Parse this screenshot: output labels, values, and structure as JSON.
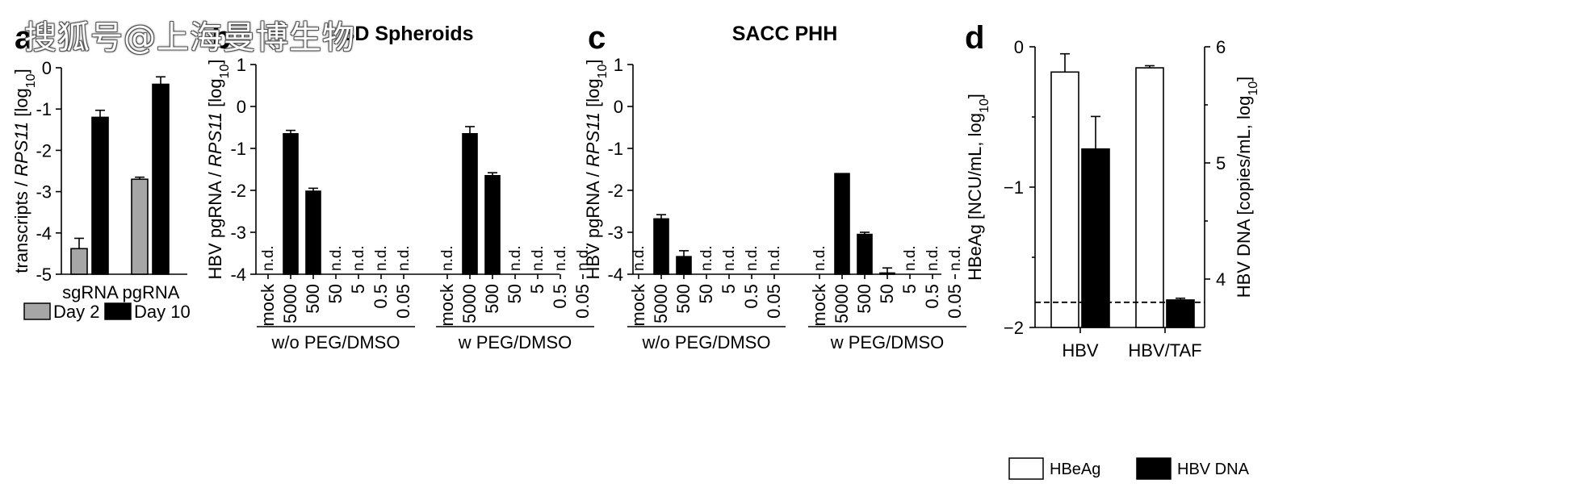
{
  "watermark": "搜狐号@上海曼博生物",
  "colors": {
    "day2": "#a6a6a6",
    "day10": "#000000",
    "black": "#000000",
    "white": "#ffffff"
  },
  "chart_data": [
    {
      "panel": "a",
      "type": "bar",
      "title": "",
      "ylabel": "transcripts / RPS11 [log10]",
      "ylim": [
        -5,
        0
      ],
      "yticks": [
        "0",
        "-1",
        "-2",
        "-3",
        "-4",
        "-5"
      ],
      "categories": [
        "sgRNA",
        "pgRNA"
      ],
      "series": [
        {
          "name": "Day 2",
          "values": [
            -4.38,
            -2.7
          ],
          "errors": [
            0.25,
            0.05
          ]
        },
        {
          "name": "Day 10",
          "values": [
            -1.2,
            -0.4
          ],
          "errors": [
            0.17,
            0.18
          ]
        }
      ],
      "legend": [
        "Day 2",
        "Day 10"
      ]
    },
    {
      "panel": "b",
      "type": "bar",
      "title": "3D Spheroids",
      "ylabel": "HBV pgRNA / RPS11 [log10]",
      "ylim": [
        -4,
        1
      ],
      "yticks": [
        "1",
        "0",
        "-1",
        "-2",
        "-3",
        "-4"
      ],
      "categories": [
        "mock",
        "5000",
        "500",
        "50",
        "5",
        "0.5",
        "0.05",
        "mock",
        "5000",
        "500",
        "50",
        "5",
        "0.5",
        "0.05"
      ],
      "values": [
        null,
        -0.65,
        -2.02,
        null,
        null,
        null,
        null,
        null,
        -0.65,
        -1.65,
        null,
        null,
        null,
        null
      ],
      "errors": [
        null,
        0.08,
        0.07,
        null,
        null,
        null,
        null,
        null,
        0.17,
        0.07,
        null,
        null,
        null,
        null
      ],
      "nd_label": "n.d.",
      "groups": [
        "w/o PEG/DMSO",
        "w PEG/DMSO"
      ]
    },
    {
      "panel": "c",
      "type": "bar",
      "title": "SACC PHH",
      "ylabel": "HBV pgRNA / RPS11 [log10]",
      "ylim": [
        -4,
        1
      ],
      "yticks": [
        "1",
        "0",
        "-1",
        "-2",
        "-3",
        "-4"
      ],
      "categories": [
        "mock",
        "5000",
        "500",
        "50",
        "5",
        "0.5",
        "0.05",
        "mock",
        "5000",
        "500",
        "50",
        "5",
        "0.5",
        "0.05"
      ],
      "values": [
        null,
        -2.68,
        -3.58,
        null,
        null,
        null,
        null,
        null,
        -1.6,
        -3.05,
        -3.97,
        null,
        null,
        null
      ],
      "errors": [
        null,
        0.1,
        0.14,
        null,
        null,
        null,
        null,
        null,
        0.0,
        0.05,
        0.12,
        null,
        null,
        null
      ],
      "nd_label": "n.d.",
      "groups": [
        "w/o PEG/DMSO",
        "w PEG/DMSO"
      ]
    },
    {
      "panel": "d",
      "type": "bar",
      "title": "",
      "ylabel": "HBeAg [NCU/mL, log10]",
      "ylabel_right": "HBV DNA [copies/mL, log10]",
      "ylim": [
        -2,
        0
      ],
      "yticks": [
        "0",
        "−1",
        "−2"
      ],
      "ylim_right": [
        3.65,
        6
      ],
      "yticks_right": [
        "6",
        "5",
        "4"
      ],
      "categories": [
        "HBV",
        "HBV/TAF"
      ],
      "series": [
        {
          "name": "HBeAg",
          "axis": "left",
          "values": [
            -0.18,
            -0.15
          ],
          "errors": [
            0.13,
            0.015
          ]
        },
        {
          "name": "HBV DNA",
          "axis": "right",
          "values": [
            5.12,
            3.82
          ],
          "errors": [
            0.28,
            0.015
          ]
        }
      ],
      "detection_limit_right": 3.8,
      "legend": [
        "HBeAg",
        "HBV DNA"
      ]
    }
  ]
}
